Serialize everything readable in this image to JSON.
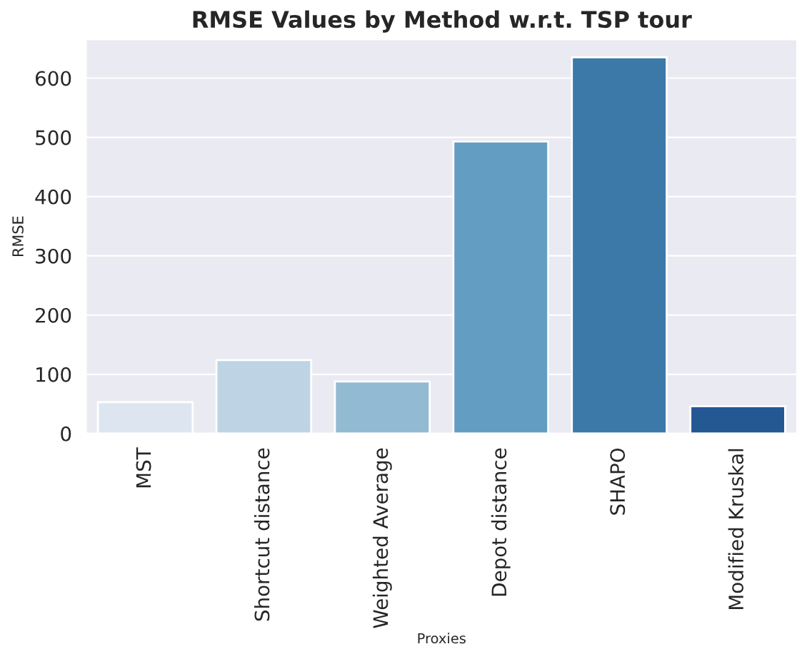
{
  "chart_data": {
    "type": "bar",
    "title": "RMSE Values by Method w.r.t. TSP tour",
    "xlabel": "Proxies",
    "ylabel": "RMSE",
    "categories": [
      "MST",
      "Shortcut distance",
      "Weighted Average",
      "Depot distance",
      "SHAPO",
      "Modified Kruskal"
    ],
    "values": [
      53,
      124,
      88,
      493,
      635,
      46
    ],
    "colors": [
      "#dde6f0",
      "#bed4e4",
      "#93bad3",
      "#649dc2",
      "#3c79a8",
      "#235893"
    ],
    "ylim": [
      0,
      665
    ],
    "yticks": [
      0,
      100,
      200,
      300,
      400,
      500,
      600
    ],
    "grid": "y"
  }
}
